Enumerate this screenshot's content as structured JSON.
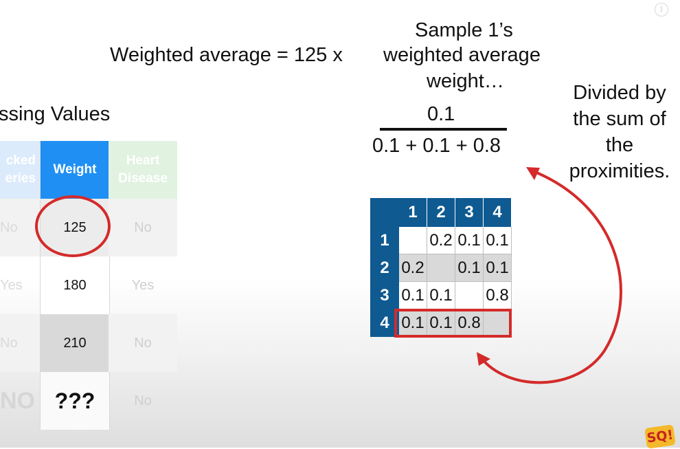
{
  "info_icon": "info-icon",
  "formula": {
    "sample_line": "Sample 1’s",
    "main_line_left": "Weighted average =  125 x",
    "main_line_right": "weighted average",
    "weight_line": "weight…",
    "numerator": "0.1",
    "denominator": "0.1 + 0.1 + 0.8"
  },
  "annotation": {
    "lines": [
      "Divided by",
      "the sum of",
      "the",
      "proximities."
    ]
  },
  "left_table": {
    "title": "ssing Values",
    "headers": [
      "cked\neries",
      "Weight",
      "Heart\nDisease"
    ],
    "rows": [
      [
        "No",
        "125",
        "No"
      ],
      [
        "Yes",
        "180",
        "Yes"
      ],
      [
        "No",
        "210",
        "No"
      ],
      [
        "NO",
        "???",
        "No"
      ]
    ]
  },
  "matrix": {
    "col_headers": [
      "1",
      "2",
      "3",
      "4"
    ],
    "row_headers": [
      "1",
      "2",
      "3",
      "4"
    ],
    "cells": [
      [
        "",
        "0.2",
        "0.1",
        "0.1"
      ],
      [
        "0.2",
        "",
        "0.1",
        "0.1"
      ],
      [
        "0.1",
        "0.1",
        "",
        "0.8"
      ],
      [
        "0.1",
        "0.1",
        "0.8",
        ""
      ]
    ]
  },
  "colors": {
    "accent_red": "#d42a2a",
    "matrix_header": "#0f5a91",
    "weight_header": "#1f8ff3"
  },
  "logo_text": "SQ!"
}
